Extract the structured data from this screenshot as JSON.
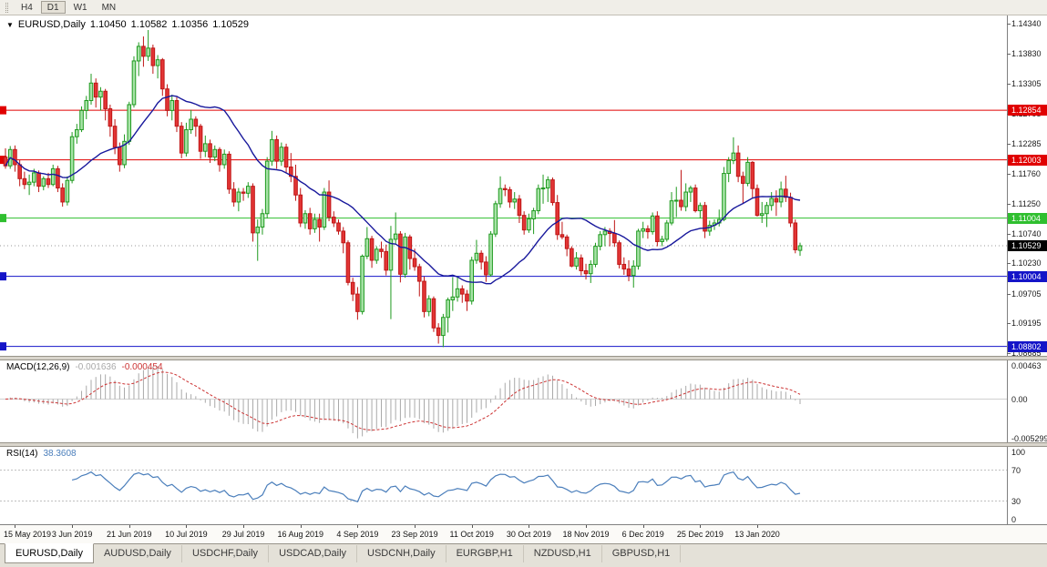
{
  "toolbar": {
    "buttons": [
      {
        "label": "H4",
        "active": false
      },
      {
        "label": "D1",
        "active": true
      },
      {
        "label": "W1",
        "active": false
      },
      {
        "label": "MN",
        "active": false
      }
    ]
  },
  "chart": {
    "dropdown_icon": "▼",
    "symbol_label": "EURUSD,Daily",
    "ohlc": {
      "open": "1.10450",
      "high": "1.10582",
      "low": "1.10356",
      "close": "1.10529"
    }
  },
  "macd_panel": {
    "label": "MACD(12,26,9)",
    "main_value": "-0.001636",
    "signal_value": "-0.000454",
    "axis_labels": [
      "0.00463",
      "0.00",
      "-0.005299"
    ]
  },
  "rsi_panel": {
    "label": "RSI(14)",
    "value": "38.3608",
    "axis_labels": [
      "100",
      "70",
      "30",
      "0"
    ]
  },
  "tabs": [
    {
      "label": "EURUSD,Daily",
      "active": true
    },
    {
      "label": "AUDUSD,Daily",
      "active": false
    },
    {
      "label": "USDCHF,Daily",
      "active": false
    },
    {
      "label": "USDCAD,Daily",
      "active": false
    },
    {
      "label": "USDCNH,Daily",
      "active": false
    },
    {
      "label": "EURGBP,H1",
      "active": false
    },
    {
      "label": "NZDUSD,H1",
      "active": false
    },
    {
      "label": "GBPUSD,H1",
      "active": false
    }
  ],
  "colors": {
    "bull_fill": "#a7e3a7",
    "bull_stroke": "#1f9a1f",
    "bear_fill": "#e23535",
    "bear_stroke": "#bf1616",
    "macd_hist": "#a9a9a9",
    "macd_signal": "#cc3333",
    "ma_line": "#18189c",
    "rsi_line": "#4a7ebb",
    "red_level": "#e00000",
    "green_level": "#2fbf2f",
    "blue_level": "#1414c8",
    "current_tag": "#000000"
  },
  "chart_data": {
    "type": "candlestick",
    "symbol": "EURUSD",
    "timeframe": "Daily",
    "ohlc_display": {
      "open": 1.1045,
      "high": 1.10582,
      "low": 1.10356,
      "close": 1.10529
    },
    "y_max": 1.1448,
    "y_min": 1.0864,
    "y_axis_labels": [
      "1.14340",
      "1.13830",
      "1.13305",
      "1.12795",
      "1.12285",
      "1.11760",
      "1.11250",
      "1.10740",
      "1.10230",
      "1.09705",
      "1.09195",
      "1.08685"
    ],
    "hlines": [
      {
        "price": 1.12854,
        "color": "#e00000",
        "label": "1.12854"
      },
      {
        "price": 1.12003,
        "color": "#e00000",
        "label": "1.12003"
      },
      {
        "price": 1.11004,
        "color": "#2fbf2f",
        "label": "1.11004"
      },
      {
        "price": 1.10004,
        "color": "#1414c8",
        "label": "1.10004"
      },
      {
        "price": 1.08802,
        "color": "#1414c8",
        "label": "1.08802"
      }
    ],
    "current_price": {
      "value": 1.10529,
      "label": "1.10529",
      "color": "#000000"
    },
    "ma_period": 20,
    "time_labels": [
      {
        "index": 2,
        "label": "15 May 2019"
      },
      {
        "index": 14,
        "label": "3 Jun 2019"
      },
      {
        "index": 26,
        "label": "21 Jun 2019"
      },
      {
        "index": 38,
        "label": "10 Jul 2019"
      },
      {
        "index": 50,
        "label": "29 Jul 2019"
      },
      {
        "index": 62,
        "label": "16 Aug 2019"
      },
      {
        "index": 74,
        "label": "4 Sep 2019"
      },
      {
        "index": 86,
        "label": "23 Sep 2019"
      },
      {
        "index": 98,
        "label": "11 Oct 2019"
      },
      {
        "index": 110,
        "label": "30 Oct 2019"
      },
      {
        "index": 122,
        "label": "18 Nov 2019"
      },
      {
        "index": 134,
        "label": "6 Dec 2019"
      },
      {
        "index": 146,
        "label": "25 Dec 2019"
      },
      {
        "index": 158,
        "label": "13 Jan 2020"
      }
    ],
    "macd": {
      "fast": 12,
      "slow": 26,
      "signal": 9,
      "scale_max": 0.0052,
      "scale_min": -0.0058
    },
    "rsi": {
      "period": 14,
      "levels": [
        70,
        30
      ],
      "scale_max": 100,
      "scale_min": 0
    },
    "candles": [
      [
        1.1205,
        1.122,
        1.1185,
        1.119
      ],
      [
        1.119,
        1.1224,
        1.1185,
        1.1218
      ],
      [
        1.1218,
        1.1225,
        1.118,
        1.1192
      ],
      [
        1.1192,
        1.12,
        1.1155,
        1.1168
      ],
      [
        1.1168,
        1.118,
        1.115,
        1.1158
      ],
      [
        1.1158,
        1.1175,
        1.114,
        1.1162
      ],
      [
        1.1162,
        1.1185,
        1.1155,
        1.1178
      ],
      [
        1.1178,
        1.1182,
        1.1145,
        1.1155
      ],
      [
        1.1155,
        1.1172,
        1.1148,
        1.1168
      ],
      [
        1.1168,
        1.1178,
        1.1152,
        1.1158
      ],
      [
        1.1158,
        1.1192,
        1.1155,
        1.1185
      ],
      [
        1.1185,
        1.119,
        1.1145,
        1.1152
      ],
      [
        1.1152,
        1.116,
        1.112,
        1.1128
      ],
      [
        1.1128,
        1.1172,
        1.1122,
        1.1165
      ],
      [
        1.1165,
        1.1248,
        1.116,
        1.124
      ],
      [
        1.124,
        1.1262,
        1.1228,
        1.1252
      ],
      [
        1.1252,
        1.1292,
        1.1248,
        1.1285
      ],
      [
        1.1285,
        1.131,
        1.127,
        1.1302
      ],
      [
        1.1302,
        1.1348,
        1.1295,
        1.1332
      ],
      [
        1.1332,
        1.134,
        1.129,
        1.1308
      ],
      [
        1.1308,
        1.1325,
        1.1285,
        1.1318
      ],
      [
        1.1318,
        1.1322,
        1.1268,
        1.1288
      ],
      [
        1.1288,
        1.1295,
        1.124,
        1.1258
      ],
      [
        1.1258,
        1.127,
        1.121,
        1.1222
      ],
      [
        1.1222,
        1.123,
        1.118,
        1.1192
      ],
      [
        1.1192,
        1.1244,
        1.1186,
        1.1232
      ],
      [
        1.1232,
        1.13,
        1.1226,
        1.1295
      ],
      [
        1.1295,
        1.1378,
        1.129,
        1.137
      ],
      [
        1.137,
        1.1402,
        1.1344,
        1.1395
      ],
      [
        1.1395,
        1.1412,
        1.136,
        1.1378
      ],
      [
        1.1378,
        1.1423,
        1.137,
        1.1392
      ],
      [
        1.1392,
        1.1398,
        1.1348,
        1.1362
      ],
      [
        1.1362,
        1.138,
        1.134,
        1.1372
      ],
      [
        1.1372,
        1.1375,
        1.131,
        1.1322
      ],
      [
        1.1322,
        1.133,
        1.1275,
        1.1285
      ],
      [
        1.1285,
        1.1312,
        1.1268,
        1.1302
      ],
      [
        1.1302,
        1.1308,
        1.1248,
        1.1258
      ],
      [
        1.1258,
        1.1265,
        1.1203,
        1.1212
      ],
      [
        1.1212,
        1.1264,
        1.1206,
        1.1252
      ],
      [
        1.1252,
        1.1286,
        1.1245,
        1.127
      ],
      [
        1.127,
        1.1275,
        1.124,
        1.1258
      ],
      [
        1.1258,
        1.1262,
        1.1202,
        1.1215
      ],
      [
        1.1215,
        1.1242,
        1.1205,
        1.1228
      ],
      [
        1.1228,
        1.1235,
        1.1195,
        1.1205
      ],
      [
        1.1205,
        1.1225,
        1.1198,
        1.1218
      ],
      [
        1.1218,
        1.1222,
        1.118,
        1.1192
      ],
      [
        1.1192,
        1.1218,
        1.1185,
        1.121
      ],
      [
        1.121,
        1.1215,
        1.1142,
        1.115
      ],
      [
        1.115,
        1.1162,
        1.112,
        1.1128
      ],
      [
        1.1128,
        1.1152,
        1.1112,
        1.1145
      ],
      [
        1.1145,
        1.1152,
        1.113,
        1.1143
      ],
      [
        1.1143,
        1.1162,
        1.1135,
        1.1155
      ],
      [
        1.1155,
        1.116,
        1.106,
        1.1075
      ],
      [
        1.1075,
        1.1098,
        1.1027,
        1.1085
      ],
      [
        1.1085,
        1.1116,
        1.1072,
        1.1108
      ],
      [
        1.1108,
        1.1205,
        1.11,
        1.1198
      ],
      [
        1.1198,
        1.125,
        1.119,
        1.1235
      ],
      [
        1.1235,
        1.1242,
        1.1185,
        1.1198
      ],
      [
        1.1198,
        1.123,
        1.119,
        1.1222
      ],
      [
        1.1222,
        1.1228,
        1.1178,
        1.1188
      ],
      [
        1.1188,
        1.1212,
        1.1162,
        1.1172
      ],
      [
        1.1172,
        1.1192,
        1.113,
        1.114
      ],
      [
        1.114,
        1.1152,
        1.1085,
        1.1092
      ],
      [
        1.1092,
        1.1114,
        1.1082,
        1.1108
      ],
      [
        1.1108,
        1.1118,
        1.1072,
        1.1082
      ],
      [
        1.1082,
        1.1108,
        1.1075,
        1.1098
      ],
      [
        1.1098,
        1.1108,
        1.106,
        1.1085
      ],
      [
        1.1085,
        1.1152,
        1.108,
        1.1145
      ],
      [
        1.1145,
        1.1165,
        1.1095,
        1.1102
      ],
      [
        1.1102,
        1.1112,
        1.1085,
        1.1092
      ],
      [
        1.1092,
        1.1098,
        1.1072,
        1.1078
      ],
      [
        1.1078,
        1.1085,
        1.104,
        1.1058
      ],
      [
        1.1058,
        1.1062,
        1.0985,
        1.099
      ],
      [
        1.099,
        1.0998,
        1.0958,
        1.097
      ],
      [
        1.097,
        1.0982,
        1.0926,
        1.094
      ],
      [
        1.094,
        1.1038,
        1.0935,
        1.1035
      ],
      [
        1.1035,
        1.1085,
        1.103,
        1.1065
      ],
      [
        1.1065,
        1.107,
        1.1015,
        1.1028
      ],
      [
        1.1028,
        1.1052,
        1.1022,
        1.1047
      ],
      [
        1.1047,
        1.106,
        1.1032,
        1.1043
      ],
      [
        1.1043,
        1.1055,
        1.1002,
        1.1011
      ],
      [
        1.1011,
        1.1087,
        1.0927,
        1.1064
      ],
      [
        1.1064,
        1.111,
        1.1055,
        1.1073
      ],
      [
        1.1073,
        1.1078,
        1.099,
        1.1004
      ],
      [
        1.1004,
        1.1075,
        1.0998,
        1.1068
      ],
      [
        1.1068,
        1.1072,
        1.1012,
        1.1031
      ],
      [
        1.1031,
        1.1048,
        1.101,
        1.1017
      ],
      [
        1.1017,
        1.1022,
        1.0966,
        1.0992
      ],
      [
        1.0992,
        1.1,
        1.093,
        1.094
      ],
      [
        1.094,
        1.0968,
        1.0932,
        1.0962
      ],
      [
        1.0962,
        1.0966,
        1.0905,
        1.0912
      ],
      [
        1.0912,
        1.092,
        1.0885,
        1.0899
      ],
      [
        1.0899,
        1.0936,
        1.0879,
        1.093
      ],
      [
        1.093,
        1.0964,
        1.0904,
        1.096
      ],
      [
        1.096,
        1.0999,
        1.0941,
        1.0965
      ],
      [
        1.0965,
        1.0999,
        1.0957,
        1.0979
      ],
      [
        1.0979,
        1.0985,
        1.0955,
        1.097
      ],
      [
        1.097,
        1.0977,
        1.0941,
        1.0958
      ],
      [
        1.0958,
        1.1034,
        1.0952,
        1.1028
      ],
      [
        1.1028,
        1.1063,
        1.1022,
        1.104
      ],
      [
        1.104,
        1.1045,
        1.1012,
        1.1025
      ],
      [
        1.1025,
        1.1035,
        1.0991,
        1.1003
      ],
      [
        1.1003,
        1.1078,
        1.1,
        1.1073
      ],
      [
        1.1073,
        1.113,
        1.1068,
        1.1125
      ],
      [
        1.1125,
        1.1172,
        1.1118,
        1.1151
      ],
      [
        1.1151,
        1.1158,
        1.1138,
        1.1149
      ],
      [
        1.1149,
        1.1154,
        1.1118,
        1.1128
      ],
      [
        1.1128,
        1.1145,
        1.1116,
        1.1133
      ],
      [
        1.1133,
        1.114,
        1.1092,
        1.1105
      ],
      [
        1.1105,
        1.1112,
        1.1072,
        1.108
      ],
      [
        1.108,
        1.1108,
        1.1075,
        1.1099
      ],
      [
        1.1099,
        1.1118,
        1.1073,
        1.1113
      ],
      [
        1.1113,
        1.1158,
        1.1107,
        1.1151
      ],
      [
        1.1151,
        1.1175,
        1.1125,
        1.1152
      ],
      [
        1.1152,
        1.1172,
        1.1128,
        1.1166
      ],
      [
        1.1166,
        1.117,
        1.1122,
        1.1127
      ],
      [
        1.1127,
        1.114,
        1.1063,
        1.1072
      ],
      [
        1.1072,
        1.1094,
        1.1064,
        1.1068
      ],
      [
        1.1068,
        1.1072,
        1.1035,
        1.1048
      ],
      [
        1.1048,
        1.1052,
        1.1016,
        1.1018
      ],
      [
        1.1018,
        1.1042,
        1.1012,
        1.1032
      ],
      [
        1.1032,
        1.1038,
        1.1002,
        1.101
      ],
      [
        1.101,
        1.1022,
        1.0995,
        1.1005
      ],
      [
        1.1005,
        1.1028,
        1.0989,
        1.1021
      ],
      [
        1.1021,
        1.1058,
        1.1016,
        1.1052
      ],
      [
        1.1052,
        1.1078,
        1.1045,
        1.1072
      ],
      [
        1.1072,
        1.1085,
        1.1052,
        1.1078
      ],
      [
        1.1078,
        1.1083,
        1.1052,
        1.1074
      ],
      [
        1.1074,
        1.1097,
        1.1051,
        1.1058
      ],
      [
        1.1058,
        1.1062,
        1.1014,
        1.1021
      ],
      [
        1.1021,
        1.1033,
        1.1003,
        1.1013
      ],
      [
        1.1013,
        1.1028,
        1.0992,
        1.1002
      ],
      [
        1.1002,
        1.1028,
        1.0981,
        1.1018
      ],
      [
        1.1018,
        1.1082,
        1.1012,
        1.1078
      ],
      [
        1.1078,
        1.1094,
        1.1066,
        1.1082
      ],
      [
        1.1082,
        1.1088,
        1.1065,
        1.1077
      ],
      [
        1.1077,
        1.111,
        1.1072,
        1.1104
      ],
      [
        1.1104,
        1.1112,
        1.1052,
        1.106
      ],
      [
        1.106,
        1.107,
        1.1052,
        1.1064
      ],
      [
        1.1064,
        1.1097,
        1.106,
        1.1092
      ],
      [
        1.1092,
        1.1145,
        1.1088,
        1.113
      ],
      [
        1.113,
        1.1154,
        1.1102,
        1.1131
      ],
      [
        1.1131,
        1.1183,
        1.1113,
        1.112
      ],
      [
        1.112,
        1.116,
        1.1112,
        1.1145
      ],
      [
        1.1145,
        1.1156,
        1.1128,
        1.1152
      ],
      [
        1.1152,
        1.1158,
        1.111,
        1.1113
      ],
      [
        1.1113,
        1.1127,
        1.11,
        1.1122
      ],
      [
        1.1122,
        1.1128,
        1.1066,
        1.1078
      ],
      [
        1.1078,
        1.1096,
        1.107,
        1.1088
      ],
      [
        1.1088,
        1.1098,
        1.108,
        1.1092
      ],
      [
        1.1092,
        1.1115,
        1.1086,
        1.1098
      ],
      [
        1.1098,
        1.1188,
        1.1095,
        1.1177
      ],
      [
        1.1177,
        1.1205,
        1.1162,
        1.1199
      ],
      [
        1.1199,
        1.1239,
        1.1193,
        1.1212
      ],
      [
        1.1212,
        1.1225,
        1.1162,
        1.1172
      ],
      [
        1.1172,
        1.118,
        1.1125,
        1.116
      ],
      [
        1.116,
        1.1205,
        1.1155,
        1.1196
      ],
      [
        1.1196,
        1.1198,
        1.1135,
        1.1151
      ],
      [
        1.1151,
        1.1158,
        1.1103,
        1.1105
      ],
      [
        1.1105,
        1.1128,
        1.1092,
        1.1108
      ],
      [
        1.1108,
        1.1128,
        1.1085,
        1.1122
      ],
      [
        1.1122,
        1.1145,
        1.1113,
        1.1134
      ],
      [
        1.1134,
        1.1148,
        1.1104,
        1.1128
      ],
      [
        1.1128,
        1.1163,
        1.1119,
        1.115
      ],
      [
        1.115,
        1.1173,
        1.1128,
        1.1136
      ],
      [
        1.1136,
        1.1144,
        1.1085,
        1.1092
      ],
      [
        1.1092,
        1.1098,
        1.104,
        1.1046
      ],
      [
        1.1045,
        1.10582,
        1.10356,
        1.10529
      ]
    ]
  }
}
